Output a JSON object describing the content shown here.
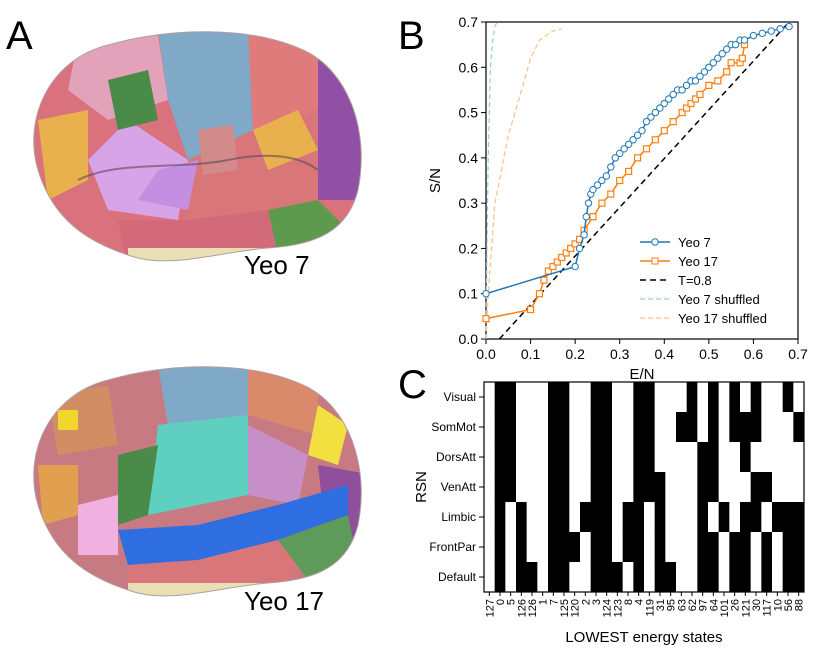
{
  "panels": {
    "a": {
      "letter": "A",
      "brain_top_label": "Yeo 7",
      "brain_bottom_label": "Yeo 17"
    },
    "b": {
      "letter": "B"
    },
    "c": {
      "letter": "C"
    }
  },
  "colors": {
    "yeo7": "#1f77b4",
    "yeo17": "#ff7f0e",
    "threshold": "#000000",
    "yeo7_shuffled": "#9ecae1",
    "yeo17_shuffled": "#fdbf86"
  },
  "chart_data": [
    {
      "id": "B",
      "type": "scatter",
      "xlabel": "E/N",
      "ylabel": "S/N",
      "xlim": [
        0.0,
        0.7
      ],
      "ylim": [
        0.0,
        0.7
      ],
      "xticks": [
        "0.0",
        "0.1",
        "0.2",
        "0.3",
        "0.4",
        "0.5",
        "0.6",
        "0.7"
      ],
      "yticks": [
        "0.0",
        "0.1",
        "0.2",
        "0.3",
        "0.4",
        "0.5",
        "0.6",
        "0.7"
      ],
      "legend_position": "bottom-right",
      "series": [
        {
          "name": "Yeo 7",
          "marker": "circle",
          "style": "solid",
          "x": [
            0.0,
            0.2,
            0.21,
            0.22,
            0.225,
            0.23,
            0.235,
            0.24,
            0.25,
            0.26,
            0.27,
            0.28,
            0.29,
            0.3,
            0.31,
            0.32,
            0.33,
            0.34,
            0.35,
            0.36,
            0.37,
            0.38,
            0.39,
            0.4,
            0.41,
            0.42,
            0.43,
            0.44,
            0.45,
            0.46,
            0.47,
            0.48,
            0.49,
            0.5,
            0.51,
            0.52,
            0.53,
            0.54,
            0.55,
            0.56,
            0.57,
            0.58,
            0.6,
            0.62,
            0.64,
            0.66,
            0.68
          ],
          "y": [
            0.1,
            0.16,
            0.2,
            0.23,
            0.27,
            0.3,
            0.32,
            0.33,
            0.34,
            0.35,
            0.36,
            0.38,
            0.4,
            0.41,
            0.42,
            0.43,
            0.44,
            0.45,
            0.46,
            0.48,
            0.49,
            0.5,
            0.51,
            0.52,
            0.53,
            0.54,
            0.55,
            0.55,
            0.56,
            0.57,
            0.57,
            0.58,
            0.59,
            0.6,
            0.61,
            0.62,
            0.63,
            0.64,
            0.65,
            0.65,
            0.66,
            0.66,
            0.67,
            0.675,
            0.68,
            0.685,
            0.69
          ]
        },
        {
          "name": "Yeo 17",
          "marker": "square",
          "style": "solid",
          "x": [
            0.0,
            0.1,
            0.12,
            0.13,
            0.14,
            0.15,
            0.16,
            0.17,
            0.18,
            0.19,
            0.2,
            0.21,
            0.22,
            0.24,
            0.26,
            0.28,
            0.3,
            0.32,
            0.34,
            0.36,
            0.38,
            0.4,
            0.42,
            0.44,
            0.45,
            0.46,
            0.47,
            0.48,
            0.5,
            0.52,
            0.54,
            0.55,
            0.57,
            0.575,
            0.58
          ],
          "y": [
            0.045,
            0.065,
            0.1,
            0.13,
            0.15,
            0.16,
            0.17,
            0.18,
            0.19,
            0.2,
            0.21,
            0.22,
            0.24,
            0.27,
            0.3,
            0.32,
            0.35,
            0.37,
            0.4,
            0.42,
            0.44,
            0.46,
            0.48,
            0.5,
            0.51,
            0.52,
            0.53,
            0.54,
            0.56,
            0.57,
            0.59,
            0.61,
            0.61,
            0.62,
            0.65
          ]
        },
        {
          "name": "T=0.8",
          "style": "dashed",
          "x": [
            0.03,
            0.68
          ],
          "y": [
            0.0,
            0.74
          ]
        },
        {
          "name": "Yeo 7 shuffled",
          "style": "dashed",
          "x": [
            0.0,
            0.002,
            0.005,
            0.01,
            0.015,
            0.02,
            0.025
          ],
          "y": [
            0.0,
            0.2,
            0.4,
            0.6,
            0.66,
            0.69,
            0.7
          ]
        },
        {
          "name": "Yeo 17 shuffled",
          "style": "dashed",
          "x": [
            0.0,
            0.005,
            0.02,
            0.05,
            0.08,
            0.1,
            0.12,
            0.15,
            0.17
          ],
          "y": [
            0.0,
            0.1,
            0.3,
            0.45,
            0.55,
            0.62,
            0.66,
            0.68,
            0.685
          ]
        }
      ]
    },
    {
      "id": "C",
      "type": "heatmap",
      "xlabel": "LOWEST energy states",
      "ylabel": "RSN",
      "rows": [
        "Visual",
        "SomMot",
        "DorsAtt",
        "VenAtt",
        "Limbic",
        "FrontPar",
        "Default"
      ],
      "columns": [
        "127",
        "0",
        "5",
        "126",
        "126",
        "1",
        "7",
        "125",
        "120",
        "2",
        "3",
        "124",
        "123",
        "8",
        "4",
        "119",
        "31",
        "95",
        "63",
        "62",
        "97",
        "64",
        "101",
        "26",
        "121",
        "30",
        "117",
        "10",
        "56",
        "88"
      ],
      "values": [
        [
          0,
          1,
          1,
          0,
          0,
          0,
          1,
          1,
          0,
          0,
          1,
          1,
          0,
          0,
          1,
          1,
          0,
          0,
          0,
          1,
          0,
          1,
          0,
          1,
          0,
          1,
          0,
          0,
          1,
          0
        ],
        [
          0,
          1,
          1,
          0,
          0,
          0,
          1,
          1,
          0,
          0,
          1,
          1,
          0,
          0,
          1,
          1,
          0,
          0,
          1,
          1,
          0,
          1,
          0,
          1,
          1,
          1,
          0,
          0,
          0,
          1
        ],
        [
          0,
          1,
          1,
          0,
          0,
          0,
          1,
          1,
          0,
          0,
          1,
          1,
          0,
          0,
          1,
          1,
          0,
          0,
          0,
          0,
          1,
          1,
          0,
          0,
          1,
          0,
          0,
          0,
          0,
          0
        ],
        [
          0,
          1,
          1,
          0,
          0,
          0,
          1,
          1,
          0,
          0,
          1,
          1,
          0,
          0,
          1,
          1,
          1,
          0,
          0,
          0,
          1,
          1,
          0,
          0,
          0,
          1,
          1,
          0,
          0,
          0
        ],
        [
          0,
          1,
          0,
          1,
          0,
          0,
          1,
          1,
          0,
          1,
          1,
          1,
          0,
          1,
          1,
          0,
          1,
          0,
          0,
          0,
          1,
          0,
          1,
          0,
          1,
          1,
          0,
          1,
          1,
          1
        ],
        [
          0,
          1,
          0,
          1,
          0,
          0,
          1,
          1,
          1,
          0,
          1,
          1,
          0,
          1,
          1,
          0,
          1,
          0,
          0,
          0,
          1,
          1,
          0,
          1,
          1,
          0,
          1,
          0,
          1,
          1
        ],
        [
          0,
          1,
          0,
          1,
          1,
          0,
          1,
          1,
          0,
          0,
          1,
          1,
          1,
          0,
          1,
          0,
          1,
          1,
          0,
          0,
          1,
          1,
          0,
          1,
          1,
          0,
          1,
          0,
          1,
          1
        ]
      ]
    }
  ]
}
